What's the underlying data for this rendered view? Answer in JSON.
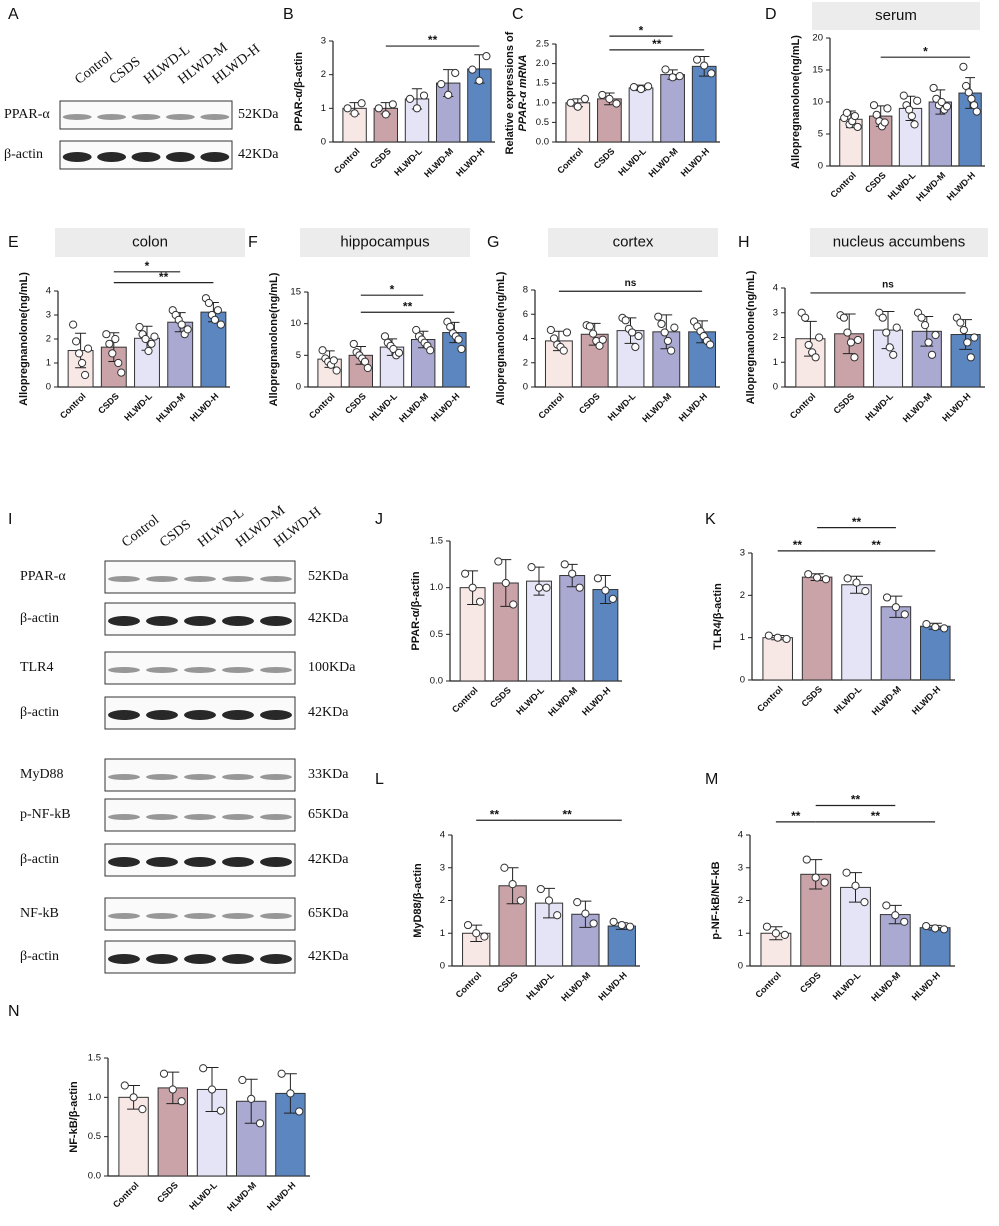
{
  "chart_data": [
    {
      "type": "bar",
      "panel": "B",
      "ylabel": "PPAR-α/β-actin",
      "categories": [
        "Control",
        "CSDS",
        "HLWD-L",
        "HLWD-M",
        "HLWD-H"
      ],
      "colors": [
        "#f7e7e5",
        "#c9a3a8",
        "#e4e4f6",
        "#aaa9d2",
        "#5b86c0"
      ],
      "values": [
        1.0,
        1.0,
        1.28,
        1.75,
        2.17
      ],
      "errors": [
        0.17,
        0.17,
        0.3,
        0.4,
        0.42
      ],
      "points": [
        [
          1.0,
          0.85,
          1.15
        ],
        [
          1.0,
          0.82,
          1.12
        ],
        [
          1.28,
          1.0,
          1.38
        ],
        [
          1.72,
          1.4,
          2.05
        ],
        [
          2.15,
          1.82,
          2.55
        ]
      ],
      "ylim": [
        0,
        3
      ],
      "yticks": [
        0,
        1,
        2,
        3
      ],
      "annotations": [
        {
          "label": "**",
          "from": "CSDS",
          "to": "HLWD-H",
          "y": 2.85
        }
      ]
    },
    {
      "type": "bar",
      "panel": "C",
      "ylabel": [
        "Relative expressions of",
        "PPAR-α mRNA"
      ],
      "categories": [
        "Control",
        "CSDS",
        "HLWD-L",
        "HLWD-M",
        "HLWD-H"
      ],
      "colors": [
        "#f7e7e5",
        "#c9a3a8",
        "#e4e4f6",
        "#aaa9d2",
        "#5b86c0"
      ],
      "values": [
        1.0,
        1.1,
        1.38,
        1.72,
        1.93
      ],
      "errors": [
        0.1,
        0.15,
        0.07,
        0.12,
        0.25
      ],
      "points": [
        [
          1.0,
          0.9,
          1.1
        ],
        [
          1.2,
          1.1,
          0.98
        ],
        [
          1.4,
          1.35,
          1.42
        ],
        [
          1.85,
          1.65,
          1.68
        ],
        [
          2.1,
          1.95,
          1.75
        ]
      ],
      "ylim": [
        0,
        2.5
      ],
      "yticks": [
        {
          "value": 0,
          "label": "0.0"
        },
        {
          "value": 0.5,
          "label": "0.5"
        },
        {
          "value": 1,
          "label": "1.0"
        },
        {
          "value": 1.5,
          "label": "1.5"
        },
        {
          "value": 2,
          "label": "2.0"
        },
        {
          "value": 2.5,
          "label": "2.5"
        }
      ],
      "annotations": [
        {
          "label": "*",
          "from": "CSDS",
          "to": "HLWD-M",
          "y": 2.7
        },
        {
          "label": "**",
          "from": "CSDS",
          "to": "HLWD-H",
          "y": 2.35
        }
      ]
    },
    {
      "type": "bar",
      "panel": "D",
      "title": "serum",
      "ylabel": "Allopregnanolone(ng/mL)",
      "categories": [
        "Control",
        "CSDS",
        "HLWD-L",
        "HLWD-M",
        "HLWD-H"
      ],
      "colors": [
        "#f7e7e5",
        "#c9a3a8",
        "#e4e4f6",
        "#aaa9d2",
        "#5b86c0"
      ],
      "values": [
        7.3,
        7.8,
        9.0,
        10.0,
        11.4
      ],
      "errors": [
        1.3,
        1.6,
        1.9,
        1.9,
        2.4
      ],
      "points": [
        [
          7.5,
          8.3,
          6.5,
          7.0,
          7.8,
          6.1
        ],
        [
          9.5,
          8.0,
          7.0,
          6.2,
          6.8,
          9.0
        ],
        [
          11.0,
          9.5,
          8.8,
          7.8,
          6.5,
          10.2
        ],
        [
          12.2,
          10.5,
          9.5,
          10.0,
          8.8,
          9.3
        ],
        [
          15.5,
          12.5,
          11.5,
          10.5,
          9.5,
          8.5
        ]
      ],
      "ylim": [
        0,
        20
      ],
      "yticks": [
        0,
        5,
        10,
        15,
        20
      ],
      "annotations": [
        {
          "label": "*",
          "from": "CSDS",
          "to": "HLWD-H",
          "y": 17
        }
      ]
    },
    {
      "type": "bar",
      "panel": "E",
      "title": "colon",
      "ylabel": "Allopregnanolone(ng/mL)",
      "categories": [
        "Control",
        "CSDS",
        "HLWD-L",
        "HLWD-M",
        "HLWD-H"
      ],
      "colors": [
        "#f7e7e5",
        "#c9a3a8",
        "#e4e4f6",
        "#aaa9d2",
        "#5b86c0"
      ],
      "values": [
        1.52,
        1.66,
        2.03,
        2.7,
        3.12
      ],
      "errors": [
        0.72,
        0.6,
        0.5,
        0.4,
        0.4
      ],
      "points": [
        [
          2.6,
          1.9,
          1.4,
          1.0,
          0.5,
          1.6
        ],
        [
          2.2,
          1.8,
          1.4,
          2.0,
          1.0,
          0.6
        ],
        [
          2.5,
          2.2,
          2.0,
          1.5,
          1.8,
          2.1
        ],
        [
          3.2,
          3.0,
          2.8,
          2.6,
          2.2,
          2.4
        ],
        [
          3.7,
          3.5,
          3.0,
          2.8,
          3.2,
          2.6
        ]
      ],
      "ylim": [
        0,
        4
      ],
      "yticks": [
        0,
        1,
        2,
        3,
        4
      ],
      "annotations": [
        {
          "label": "*",
          "from": "CSDS",
          "to": "HLWD-M",
          "y": 4.8
        },
        {
          "label": "**",
          "from": "CSDS",
          "to": "HLWD-H",
          "y": 4.35
        }
      ]
    },
    {
      "type": "bar",
      "panel": "F",
      "title": "hippocampus",
      "ylabel": "Allopregnanolone(ng/mL)",
      "categories": [
        "Control",
        "CSDS",
        "HLWD-L",
        "HLWD-M",
        "HLWD-H"
      ],
      "colors": [
        "#f7e7e5",
        "#c9a3a8",
        "#e4e4f6",
        "#aaa9d2",
        "#5b86c0"
      ],
      "values": [
        4.4,
        5.0,
        6.3,
        7.5,
        8.6
      ],
      "errors": [
        1.3,
        1.4,
        1.3,
        1.3,
        1.6
      ],
      "points": [
        [
          5.8,
          4.5,
          4.0,
          3.5,
          4.2,
          2.6
        ],
        [
          6.8,
          5.5,
          5.0,
          4.5,
          4.0,
          3.0
        ],
        [
          8.0,
          7.0,
          6.5,
          6.0,
          5.0,
          5.4
        ],
        [
          9.0,
          8.0,
          7.5,
          7.0,
          6.5,
          5.8
        ],
        [
          10.3,
          9.5,
          8.5,
          8.0,
          7.5,
          6.0
        ]
      ],
      "ylim": [
        0,
        15
      ],
      "yticks": [
        0,
        5,
        10,
        15
      ],
      "annotations": [
        {
          "label": "*",
          "from": "CSDS",
          "to": "HLWD-M",
          "y": 14.5
        },
        {
          "label": "**",
          "from": "CSDS",
          "to": "HLWD-H",
          "y": 11.8
        }
      ]
    },
    {
      "type": "bar",
      "panel": "G",
      "title": "cortex",
      "ylabel": "Allopregnanolone(ng/mL)",
      "categories": [
        "Control",
        "CSDS",
        "HLWD-L",
        "HLWD-M",
        "HLWD-H"
      ],
      "colors": [
        "#f7e7e5",
        "#c9a3a8",
        "#e4e4f6",
        "#aaa9d2",
        "#5b86c0"
      ],
      "values": [
        3.8,
        4.35,
        4.65,
        4.55,
        4.55
      ],
      "errors": [
        0.8,
        0.9,
        1.05,
        1.4,
        0.9
      ],
      "points": [
        [
          4.7,
          4.0,
          3.5,
          3.3,
          3.0,
          4.5
        ],
        [
          5.1,
          5.0,
          4.4,
          3.8,
          3.4,
          3.9
        ],
        [
          5.7,
          5.5,
          4.8,
          4.5,
          3.3,
          4.2
        ],
        [
          5.8,
          5.2,
          4.5,
          3.8,
          3.0,
          4.9
        ],
        [
          5.4,
          5.0,
          4.6,
          4.2,
          3.8,
          3.5
        ]
      ],
      "ylim": [
        0,
        8
      ],
      "yticks": [
        0,
        2,
        4,
        6,
        8
      ],
      "annotations": [
        {
          "label": "ns",
          "from": "Control",
          "to": "HLWD-H",
          "y": 7.9
        }
      ]
    },
    {
      "type": "bar",
      "panel": "H",
      "title": "nucleus accumbens",
      "ylabel": "Allopregnanolone(ng/mL)",
      "categories": [
        "Control",
        "CSDS",
        "HLWD-L",
        "HLWD-M",
        "HLWD-H"
      ],
      "colors": [
        "#f7e7e5",
        "#c9a3a8",
        "#e4e4f6",
        "#aaa9d2",
        "#5b86c0"
      ],
      "values": [
        1.95,
        2.15,
        2.3,
        2.25,
        2.12
      ],
      "errors": [
        0.7,
        0.8,
        0.75,
        0.6,
        0.6
      ],
      "points": [
        [
          3.0,
          2.8,
          1.7,
          1.4,
          1.2,
          2.0
        ],
        [
          2.9,
          2.8,
          2.2,
          1.8,
          1.2,
          1.9
        ],
        [
          3.0,
          2.8,
          2.2,
          1.6,
          1.3,
          2.4
        ],
        [
          3.0,
          2.8,
          2.5,
          1.8,
          1.3,
          2.1
        ],
        [
          2.8,
          2.6,
          2.3,
          1.8,
          1.2,
          2.0
        ]
      ],
      "ylim": [
        0,
        4
      ],
      "yticks": [
        0,
        1,
        2,
        3,
        4
      ],
      "annotations": [
        {
          "label": "ns",
          "from": "Control",
          "to": "HLWD-H",
          "y": 3.8
        }
      ]
    },
    {
      "type": "bar",
      "panel": "J",
      "ylabel": "PPAR-α/β-actin",
      "categories": [
        "Control",
        "CSDS",
        "HLWD-L",
        "HLWD-M",
        "HLWD-H"
      ],
      "colors": [
        "#f7e7e5",
        "#c9a3a8",
        "#e4e4f6",
        "#aaa9d2",
        "#5b86c0"
      ],
      "values": [
        1.0,
        1.05,
        1.07,
        1.13,
        0.98
      ],
      "errors": [
        0.18,
        0.25,
        0.15,
        0.12,
        0.15
      ],
      "points": [
        [
          1.15,
          1.0,
          0.85
        ],
        [
          1.28,
          1.05,
          0.82
        ],
        [
          1.22,
          1.0,
          1.0
        ],
        [
          1.25,
          1.15,
          1.0
        ],
        [
          1.1,
          0.97,
          0.88
        ]
      ],
      "ylim": [
        0,
        1.5
      ],
      "yticks": [
        {
          "value": 0,
          "label": "0.0"
        },
        {
          "value": 0.5,
          "label": "0.5"
        },
        {
          "value": 1,
          "label": "1.0"
        },
        {
          "value": 1.5,
          "label": "1.5"
        }
      ],
      "annotations": []
    },
    {
      "type": "bar",
      "panel": "K",
      "ylabel": "TLR4/β-actin",
      "categories": [
        "Control",
        "CSDS",
        "HLWD-L",
        "HLWD-M",
        "HLWD-H"
      ],
      "colors": [
        "#f7e7e5",
        "#c9a3a8",
        "#e4e4f6",
        "#aaa9d2",
        "#5b86c0"
      ],
      "values": [
        1.0,
        2.43,
        2.25,
        1.73,
        1.27
      ],
      "errors": [
        0.05,
        0.08,
        0.2,
        0.25,
        0.07
      ],
      "points": [
        [
          1.05,
          1.0,
          0.97
        ],
        [
          2.5,
          2.42,
          2.38
        ],
        [
          2.4,
          2.3,
          2.1
        ],
        [
          1.95,
          1.72,
          1.55
        ],
        [
          1.32,
          1.25,
          1.22
        ]
      ],
      "ylim": [
        0,
        3
      ],
      "yticks": [
        0,
        1,
        2,
        3
      ],
      "annotations": [
        {
          "label": "**",
          "from": "Control",
          "to": "CSDS",
          "y": 3.05
        },
        {
          "label": "**",
          "from": "CSDS",
          "to": "HLWD-M",
          "y": 3.6
        },
        {
          "label": "**",
          "from": "CSDS",
          "to": "HLWD-H",
          "y": 3.05
        }
      ]
    },
    {
      "type": "bar",
      "panel": "L",
      "ylabel": "MyD88/β-actin",
      "categories": [
        "Control",
        "CSDS",
        "HLWD-L",
        "HLWD-M",
        "HLWD-H"
      ],
      "colors": [
        "#f7e7e5",
        "#c9a3a8",
        "#e4e4f6",
        "#aaa9d2",
        "#5b86c0"
      ],
      "values": [
        1.0,
        2.45,
        1.92,
        1.58,
        1.22
      ],
      "errors": [
        0.25,
        0.55,
        0.45,
        0.4,
        0.1
      ],
      "points": [
        [
          1.25,
          1.0,
          0.9
        ],
        [
          3.0,
          2.5,
          2.0
        ],
        [
          2.35,
          2.0,
          1.55
        ],
        [
          1.95,
          1.6,
          1.3
        ],
        [
          1.35,
          1.25,
          1.2
        ]
      ],
      "ylim": [
        0,
        4
      ],
      "yticks": [
        0,
        1,
        2,
        3,
        4
      ],
      "annotations": [
        {
          "label": "**",
          "from": "Control",
          "to": "CSDS",
          "y": 4.45
        },
        {
          "label": "**",
          "from": "CSDS",
          "to": "HLWD-H",
          "y": 4.45
        }
      ]
    },
    {
      "type": "bar",
      "panel": "M",
      "ylabel": "p-NF-kB/NF-kB",
      "categories": [
        "Control",
        "CSDS",
        "HLWD-L",
        "HLWD-M",
        "HLWD-H"
      ],
      "colors": [
        "#f7e7e5",
        "#c9a3a8",
        "#e4e4f6",
        "#aaa9d2",
        "#5b86c0"
      ],
      "values": [
        1.0,
        2.8,
        2.4,
        1.57,
        1.17
      ],
      "errors": [
        0.2,
        0.45,
        0.45,
        0.28,
        0.07
      ],
      "points": [
        [
          1.2,
          1.0,
          0.95
        ],
        [
          3.25,
          2.7,
          2.55
        ],
        [
          2.85,
          2.45,
          1.95
        ],
        [
          1.85,
          1.55,
          1.35
        ],
        [
          1.22,
          1.15,
          1.12
        ]
      ],
      "ylim": [
        0,
        4
      ],
      "yticks": [
        0,
        1,
        2,
        3,
        4
      ],
      "annotations": [
        {
          "label": "**",
          "from": "Control",
          "to": "CSDS",
          "y": 4.4
        },
        {
          "label": "**",
          "from": "CSDS",
          "to": "HLWD-M",
          "y": 4.9
        },
        {
          "label": "**",
          "from": "CSDS",
          "to": "HLWD-H",
          "y": 4.4
        }
      ]
    },
    {
      "type": "bar",
      "panel": "N",
      "ylabel": "NF-kB/β-actin",
      "categories": [
        "Control",
        "CSDS",
        "HLWD-L",
        "HLWD-M",
        "HLWD-H"
      ],
      "colors": [
        "#f7e7e5",
        "#c9a3a8",
        "#e4e4f6",
        "#aaa9d2",
        "#5b86c0"
      ],
      "values": [
        1.0,
        1.12,
        1.1,
        0.95,
        1.05
      ],
      "errors": [
        0.15,
        0.2,
        0.28,
        0.28,
        0.25
      ],
      "points": [
        [
          1.15,
          1.0,
          0.85
        ],
        [
          1.3,
          1.1,
          0.95
        ],
        [
          1.37,
          1.1,
          0.83
        ],
        [
          1.22,
          0.98,
          0.67
        ],
        [
          1.3,
          1.05,
          0.82
        ]
      ],
      "ylim": [
        0,
        1.5
      ],
      "yticks": [
        {
          "value": 0,
          "label": "0.0"
        },
        {
          "value": 0.5,
          "label": "0.5"
        },
        {
          "value": 1,
          "label": "1.0"
        },
        {
          "value": 1.5,
          "label": "1.5"
        }
      ],
      "annotations": []
    }
  ],
  "blots": [
    {
      "panel": "A",
      "lanes": [
        "Control",
        "CSDS",
        "HLWD-L",
        "HLWD-M",
        "HLWD-H"
      ],
      "rows": [
        {
          "protein": "PPAR-α",
          "size": "52KDa"
        },
        {
          "protein": "β-actin",
          "size": "42KDa"
        }
      ]
    },
    {
      "panel": "I",
      "lanes": [
        "Control",
        "CSDS",
        "HLWD-L",
        "HLWD-M",
        "HLWD-H"
      ],
      "rows": [
        {
          "protein": "PPAR-α",
          "size": "52KDa"
        },
        {
          "protein": "β-actin",
          "size": "42KDa"
        },
        {
          "protein": "TLR4",
          "size": "100KDa"
        },
        {
          "protein": "β-actin",
          "size": "42KDa"
        },
        {
          "protein": "MyD88",
          "size": "33KDa"
        },
        {
          "protein": "p-NF-kB",
          "size": "65KDa"
        },
        {
          "protein": "β-actin",
          "size": "42KDa"
        },
        {
          "protein": "NF-kB",
          "size": "65KDa"
        },
        {
          "protein": "β-actin",
          "size": "42KDa"
        }
      ]
    }
  ]
}
